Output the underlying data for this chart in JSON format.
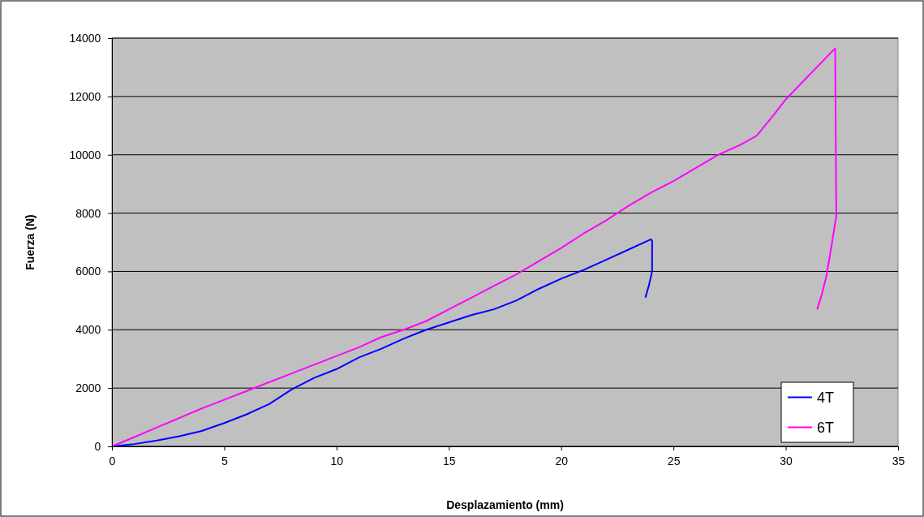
{
  "chart_data": {
    "type": "line",
    "xlabel": "Desplazamiento (mm)",
    "ylabel": "Fuerza (N)",
    "xlim": [
      0,
      35
    ],
    "xticks": [
      0,
      5,
      10,
      15,
      20,
      25,
      30,
      35
    ],
    "ylim": [
      0,
      14000
    ],
    "yticks": [
      0,
      2000,
      4000,
      6000,
      8000,
      10000,
      12000,
      14000
    ],
    "grid": "y",
    "legend": "bottom right",
    "marker": "none",
    "line_style": "solid",
    "series": [
      {
        "name": "4T",
        "color": "#0000ff",
        "x": [
          0,
          1,
          2,
          3,
          4,
          5,
          6,
          7,
          8,
          9,
          10,
          11,
          12,
          13,
          14,
          15,
          16,
          17,
          18,
          19,
          20,
          21,
          22,
          23,
          24,
          24.05,
          24.05,
          23.9,
          23.75
        ],
        "values": [
          0,
          80,
          200,
          350,
          530,
          800,
          1100,
          1450,
          1950,
          2350,
          2650,
          3050,
          3350,
          3700,
          4000,
          4250,
          4500,
          4700,
          5000,
          5400,
          5750,
          6050,
          6400,
          6750,
          7100,
          7050,
          6000,
          5500,
          5100
        ]
      },
      {
        "name": "6T",
        "color": "#ff00ff",
        "x": [
          0,
          1,
          2,
          4,
          6,
          8,
          10,
          11,
          12,
          13,
          14,
          15,
          16,
          17,
          18,
          19,
          20,
          21,
          22,
          23,
          24,
          25,
          26,
          27,
          28,
          28.7,
          29.5,
          30,
          31,
          32.2,
          32.25,
          32,
          31.8,
          31.6,
          31.4
        ],
        "values": [
          0,
          320,
          650,
          1300,
          1900,
          2500,
          3100,
          3400,
          3750,
          4000,
          4300,
          4700,
          5100,
          5500,
          5900,
          6350,
          6800,
          7300,
          7750,
          8250,
          8700,
          9100,
          9550,
          10000,
          10350,
          10650,
          11400,
          11900,
          12700,
          13650,
          7900,
          6700,
          5800,
          5200,
          4700
        ]
      }
    ]
  }
}
